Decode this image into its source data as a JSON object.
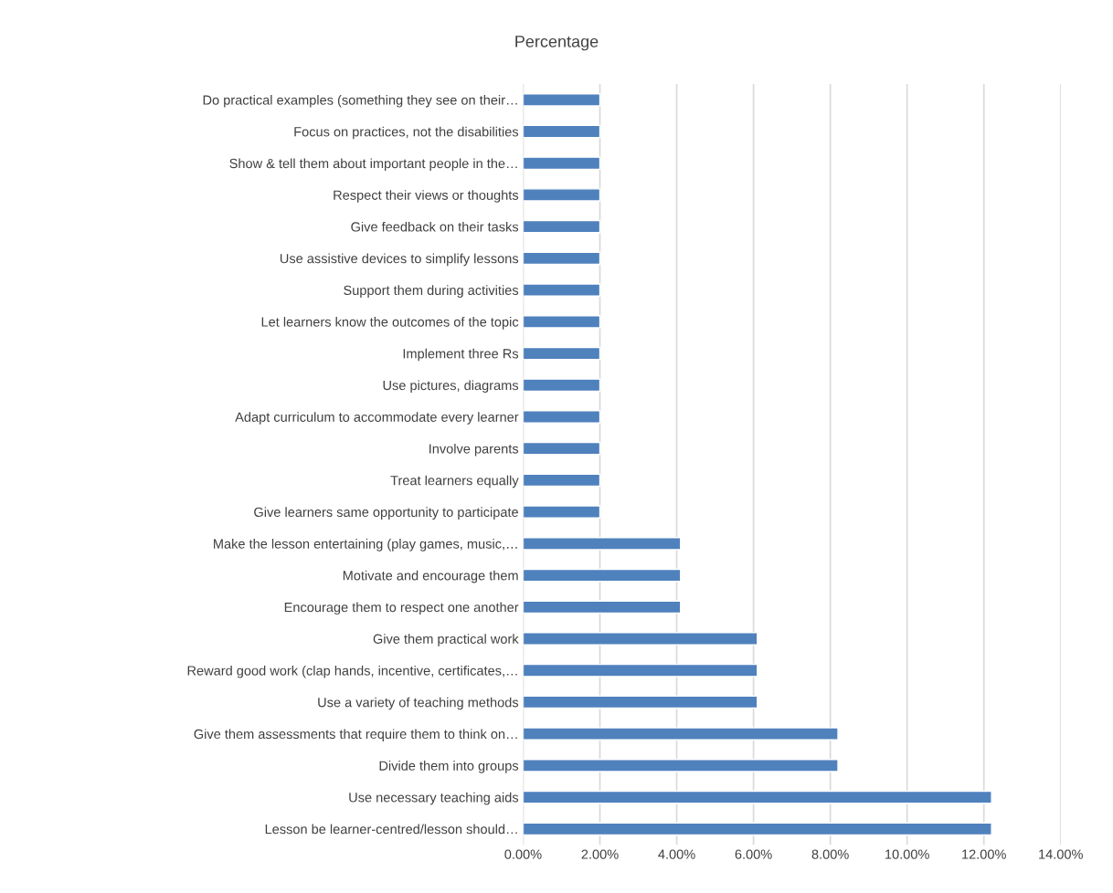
{
  "chart_data": {
    "type": "bar",
    "orientation": "horizontal",
    "title": "Percentage",
    "categories": [
      "Do practical examples (something they see on their…",
      "Focus on practices, not the disabilities",
      "Show & tell them about important people in the…",
      "Respect their views or thoughts",
      "Give feedback on their tasks",
      "Use assistive devices to simplify lessons",
      "Support them during activities",
      "Let learners know the outcomes of the topic",
      "Implement three Rs",
      "Use pictures, diagrams",
      "Adapt curriculum to accommodate every learner",
      "Involve parents",
      "Treat learners equally",
      "Give learners same opportunity to participate",
      "Make the lesson entertaining (play games, music,…",
      "Motivate and encourage them",
      "Encourage them to respect one another",
      "Give them practical work",
      "Reward good work (clap hands, incentive, certificates,…",
      "Use a variety of teaching methods",
      "Give them assessments that require them to think on…",
      "Divide them into groups",
      "Use necessary teaching aids",
      "Lesson be learner-centred/lesson should…"
    ],
    "values": [
      2.0,
      2.0,
      2.0,
      2.0,
      2.0,
      2.0,
      2.0,
      2.0,
      2.0,
      2.0,
      2.0,
      2.0,
      2.0,
      2.0,
      4.1,
      4.1,
      4.1,
      6.1,
      6.1,
      6.1,
      8.2,
      8.2,
      12.2,
      12.2
    ],
    "color": "#4f81bd",
    "xlim": [
      0,
      14
    ],
    "xticks": [
      {
        "value": 0,
        "label": "0.00%"
      },
      {
        "value": 2,
        "label": "2.00%"
      },
      {
        "value": 4,
        "label": "4.00%"
      },
      {
        "value": 6,
        "label": "6.00%"
      },
      {
        "value": 8,
        "label": "8.00%"
      },
      {
        "value": 10,
        "label": "10.00%"
      },
      {
        "value": 12,
        "label": "12.00%"
      },
      {
        "value": 14,
        "label": "14.00%"
      }
    ],
    "grid": "x",
    "legend": false
  }
}
